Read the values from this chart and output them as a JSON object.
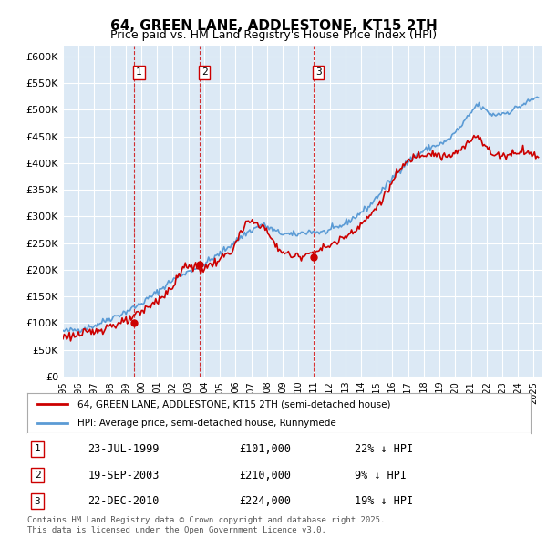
{
  "title": "64, GREEN LANE, ADDLESTONE, KT15 2TH",
  "subtitle": "Price paid vs. HM Land Registry's House Price Index (HPI)",
  "ylabel_ticks": [
    "£0",
    "£50K",
    "£100K",
    "£150K",
    "£200K",
    "£250K",
    "£300K",
    "£350K",
    "£400K",
    "£450K",
    "£500K",
    "£550K",
    "£600K"
  ],
  "ylim": [
    0,
    620000
  ],
  "xlim_start": 1995.0,
  "xlim_end": 2025.5,
  "background_color": "#dce9f5",
  "plot_bg_color": "#dce9f5",
  "grid_color": "#ffffff",
  "sale_dates": [
    1999.55,
    2003.72,
    2010.98
  ],
  "sale_prices": [
    101000,
    210000,
    224000
  ],
  "sale_labels": [
    "1",
    "2",
    "3"
  ],
  "sale_info": [
    {
      "label": "1",
      "date": "23-JUL-1999",
      "price": "£101,000",
      "pct": "22% ↓ HPI"
    },
    {
      "label": "2",
      "date": "19-SEP-2003",
      "price": "£210,000",
      "pct": "9% ↓ HPI"
    },
    {
      "label": "3",
      "date": "22-DEC-2010",
      "price": "£224,000",
      "pct": "19% ↓ HPI"
    }
  ],
  "legend_line1": "64, GREEN LANE, ADDLESTONE, KT15 2TH (semi-detached house)",
  "legend_line2": "HPI: Average price, semi-detached house, Runnymede",
  "footer": "Contains HM Land Registry data © Crown copyright and database right 2025.\nThis data is licensed under the Open Government Licence v3.0.",
  "red_color": "#cc0000",
  "blue_color": "#5b9bd5",
  "vline_color": "#cc0000",
  "xtick_years": [
    1995,
    1996,
    1997,
    1998,
    1999,
    2000,
    2001,
    2002,
    2003,
    2004,
    2005,
    2006,
    2007,
    2008,
    2009,
    2010,
    2011,
    2012,
    2013,
    2014,
    2015,
    2016,
    2017,
    2018,
    2019,
    2020,
    2021,
    2022,
    2023,
    2024,
    2025
  ]
}
